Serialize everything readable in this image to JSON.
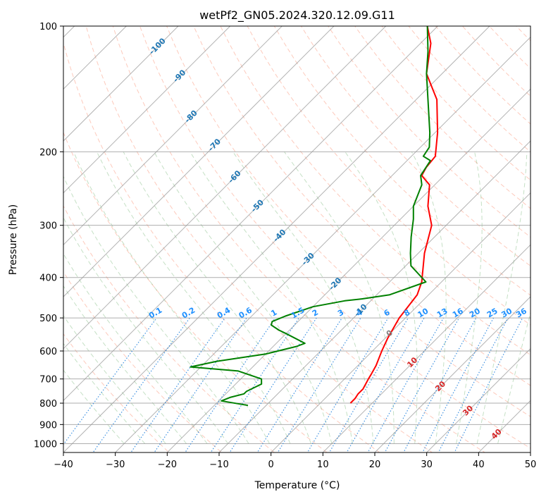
{
  "chart_data": {
    "type": "line",
    "subtype": "skew-t log-p diagram",
    "title": "wetPf2_GN05.2024.320.12.09.G11",
    "xlabel": "Temperature (°C)",
    "ylabel": "Pressure (hPa)",
    "xlim": [
      -40,
      50
    ],
    "ylim": [
      1050,
      100
    ],
    "y_scale": "log",
    "grid": true,
    "x_ticks": [
      -40,
      -30,
      -20,
      -10,
      0,
      10,
      20,
      30,
      40,
      50
    ],
    "x_tick_labels": [
      "−40",
      "−30",
      "−20",
      "−10",
      "0",
      "10",
      "20",
      "30",
      "40",
      "50"
    ],
    "y_ticks": [
      100,
      200,
      300,
      400,
      500,
      600,
      700,
      800,
      900,
      1000
    ],
    "y_tick_labels": [
      "100",
      "200",
      "300",
      "400",
      "500",
      "600",
      "700",
      "800",
      "900",
      "1000"
    ],
    "isotherm_labels": [
      {
        "t": -100,
        "p": 112,
        "text": "-100"
      },
      {
        "t": -90,
        "p": 132,
        "text": "-90"
      },
      {
        "t": -80,
        "p": 165,
        "text": "-80"
      },
      {
        "t": -70,
        "p": 193,
        "text": "-70"
      },
      {
        "t": -60,
        "p": 230,
        "text": "-60"
      },
      {
        "t": -50,
        "p": 270,
        "text": "-50"
      },
      {
        "t": -40,
        "p": 318,
        "text": "-40"
      },
      {
        "t": -30,
        "p": 362,
        "text": "-30"
      },
      {
        "t": -20,
        "p": 415,
        "text": "-20"
      },
      {
        "t": -10,
        "p": 480,
        "text": "-10"
      },
      {
        "t": 0,
        "p": 545,
        "text": "0"
      },
      {
        "t": 10,
        "p": 640,
        "text": "10"
      },
      {
        "t": 20,
        "p": 730,
        "text": "20"
      },
      {
        "t": 30,
        "p": 835,
        "text": "30"
      },
      {
        "t": 40,
        "p": 950,
        "text": "40"
      }
    ],
    "mixing_ratio_lines": [
      0.1,
      0.2,
      0.4,
      0.6,
      1,
      1.5,
      2,
      3,
      4,
      6,
      8,
      10,
      13,
      16,
      20,
      25,
      30,
      36
    ],
    "mixing_ratio_labels": [
      "0.1",
      "0.2",
      "0.4",
      "0.6",
      "1",
      "1.5",
      "2",
      "3",
      "4",
      "6",
      "8",
      "10",
      "13",
      "16",
      "20",
      "25",
      "30",
      "36"
    ],
    "series": [
      {
        "color": "#ff0000",
        "points": [
          [
            5.8,
            800
          ],
          [
            5.8,
            780
          ],
          [
            5.5,
            760
          ],
          [
            5.5,
            740
          ],
          [
            4.6,
            700
          ],
          [
            4.2,
            680
          ],
          [
            3.5,
            650
          ],
          [
            1.8,
            600
          ],
          [
            0.5,
            560
          ],
          [
            -1.2,
            500
          ],
          [
            -2.2,
            440
          ],
          [
            -3.8,
            410
          ],
          [
            -8.8,
            350
          ],
          [
            -12.8,
            300
          ],
          [
            -17.2,
            270
          ],
          [
            -21,
            240
          ],
          [
            -24.3,
            228
          ],
          [
            -25,
            218
          ],
          [
            -25.4,
            205
          ],
          [
            -29.5,
            180
          ],
          [
            -36,
            150
          ],
          [
            -43,
            130
          ],
          [
            -48,
            110
          ],
          [
            -52,
            100
          ]
        ]
      },
      {
        "color": "#008000",
        "points": [
          [
            -13.5,
            810
          ],
          [
            -19.5,
            790
          ],
          [
            -18.5,
            775
          ],
          [
            -16.5,
            760
          ],
          [
            -16.5,
            750
          ],
          [
            -15,
            720
          ],
          [
            -16,
            700
          ],
          [
            -22,
            670
          ],
          [
            -32,
            655
          ],
          [
            -31,
            650
          ],
          [
            -28,
            635
          ],
          [
            -20,
            610
          ],
          [
            -15.5,
            585
          ],
          [
            -14.5,
            575
          ],
          [
            -20,
            545
          ],
          [
            -22,
            535
          ],
          [
            -24.5,
            520
          ],
          [
            -25,
            510
          ],
          [
            -23.5,
            495
          ],
          [
            -20,
            470
          ],
          [
            -15,
            455
          ],
          [
            -12,
            450
          ],
          [
            -7.5,
            440
          ],
          [
            -3,
            410
          ],
          [
            -9,
            375
          ],
          [
            -11.5,
            350
          ],
          [
            -14.5,
            320
          ],
          [
            -17.5,
            290
          ],
          [
            -20,
            270
          ],
          [
            -22.5,
            240
          ],
          [
            -24.5,
            228
          ],
          [
            -25.5,
            210
          ],
          [
            -27.7,
            205
          ],
          [
            -28.3,
            195
          ],
          [
            -31,
            180
          ],
          [
            -43,
            130
          ],
          [
            -47,
            115
          ],
          [
            -52,
            100
          ]
        ]
      }
    ]
  }
}
